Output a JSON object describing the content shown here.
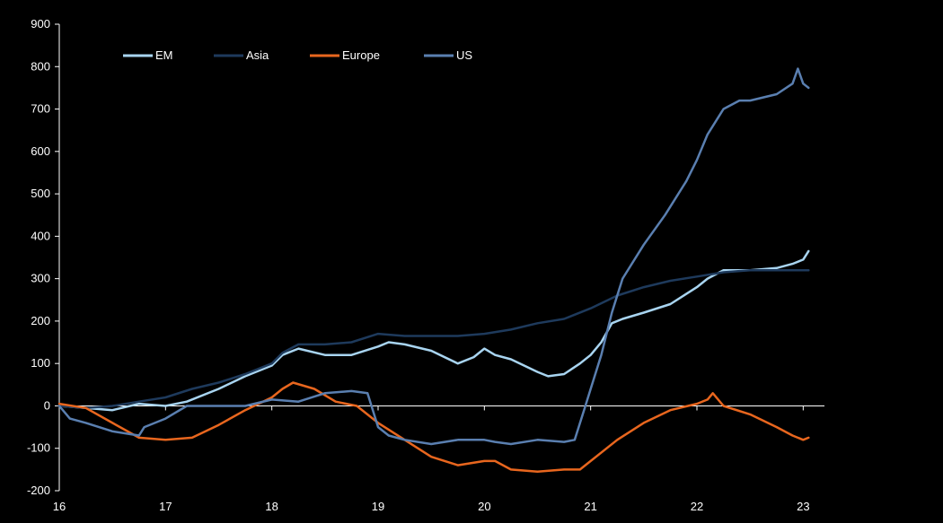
{
  "chart_data": {
    "type": "line",
    "title": "",
    "xlabel": "",
    "ylabel": "",
    "x_ticks": [
      "16",
      "17",
      "18",
      "19",
      "20",
      "21",
      "22",
      "23"
    ],
    "x_range": [
      16.0,
      23.2
    ],
    "ylim": [
      -200,
      900
    ],
    "y_ticks": [
      -200,
      -100,
      0,
      100,
      200,
      300,
      400,
      500,
      600,
      700,
      800,
      900
    ],
    "grid": false,
    "legend_position": "top-left",
    "series": [
      {
        "name": "EM",
        "color": "#a8d4f0",
        "x": [
          16.0,
          16.25,
          16.5,
          16.75,
          17.0,
          17.2,
          17.5,
          17.75,
          18.0,
          18.1,
          18.25,
          18.5,
          18.75,
          19.0,
          19.1,
          19.25,
          19.5,
          19.75,
          19.9,
          20.0,
          20.1,
          20.25,
          20.5,
          20.6,
          20.75,
          20.9,
          21.0,
          21.1,
          21.2,
          21.3,
          21.5,
          21.75,
          22.0,
          22.1,
          22.25,
          22.5,
          22.75,
          22.9,
          23.0,
          23.05
        ],
        "y": [
          0,
          -5,
          -10,
          5,
          0,
          10,
          40,
          70,
          95,
          120,
          135,
          120,
          120,
          140,
          150,
          145,
          130,
          100,
          115,
          135,
          120,
          110,
          80,
          70,
          75,
          100,
          120,
          150,
          195,
          205,
          220,
          240,
          280,
          300,
          320,
          320,
          325,
          335,
          345,
          365
        ]
      },
      {
        "name": "Asia",
        "color": "#1e3a5c",
        "x": [
          16.0,
          16.25,
          16.5,
          16.75,
          17.0,
          17.25,
          17.5,
          17.75,
          18.0,
          18.1,
          18.25,
          18.5,
          18.75,
          19.0,
          19.25,
          19.5,
          19.75,
          20.0,
          20.25,
          20.5,
          20.75,
          21.0,
          21.25,
          21.5,
          21.75,
          22.0,
          22.25,
          22.5,
          22.75,
          23.0,
          23.05
        ],
        "y": [
          0,
          -5,
          0,
          10,
          20,
          40,
          55,
          75,
          100,
          125,
          145,
          145,
          150,
          170,
          165,
          165,
          165,
          170,
          180,
          195,
          205,
          230,
          260,
          280,
          295,
          305,
          315,
          320,
          320,
          320,
          320
        ]
      },
      {
        "name": "Europe",
        "color": "#e8661e",
        "x": [
          16.0,
          16.25,
          16.5,
          16.75,
          17.0,
          17.25,
          17.5,
          17.75,
          18.0,
          18.1,
          18.2,
          18.4,
          18.6,
          18.8,
          19.0,
          19.25,
          19.5,
          19.75,
          20.0,
          20.1,
          20.25,
          20.5,
          20.75,
          20.9,
          21.0,
          21.25,
          21.5,
          21.75,
          22.0,
          22.1,
          22.15,
          22.25,
          22.5,
          22.75,
          22.9,
          23.0,
          23.05
        ],
        "y": [
          5,
          -5,
          -40,
          -75,
          -80,
          -75,
          -45,
          -10,
          20,
          40,
          55,
          40,
          10,
          0,
          -40,
          -80,
          -120,
          -140,
          -130,
          -130,
          -150,
          -155,
          -150,
          -150,
          -130,
          -80,
          -40,
          -10,
          5,
          15,
          30,
          0,
          -20,
          -50,
          -70,
          -80,
          -75
        ]
      },
      {
        "name": "US",
        "color": "#5a7fb0",
        "x": [
          16.0,
          16.1,
          16.25,
          16.5,
          16.75,
          16.8,
          17.0,
          17.2,
          17.5,
          17.75,
          18.0,
          18.25,
          18.5,
          18.75,
          18.9,
          19.0,
          19.1,
          19.25,
          19.5,
          19.75,
          20.0,
          20.1,
          20.25,
          20.5,
          20.75,
          20.85,
          20.95,
          21.0,
          21.1,
          21.2,
          21.3,
          21.5,
          21.7,
          21.75,
          21.9,
          22.0,
          22.1,
          22.25,
          22.4,
          22.5,
          22.75,
          22.9,
          22.95,
          23.0,
          23.05
        ],
        "y": [
          0,
          -30,
          -40,
          -60,
          -70,
          -50,
          -30,
          0,
          0,
          0,
          15,
          10,
          30,
          35,
          30,
          -50,
          -70,
          -80,
          -90,
          -80,
          -80,
          -85,
          -90,
          -80,
          -85,
          -80,
          0,
          40,
          120,
          220,
          300,
          380,
          450,
          470,
          530,
          580,
          640,
          700,
          720,
          720,
          735,
          760,
          795,
          760,
          750
        ]
      }
    ]
  }
}
